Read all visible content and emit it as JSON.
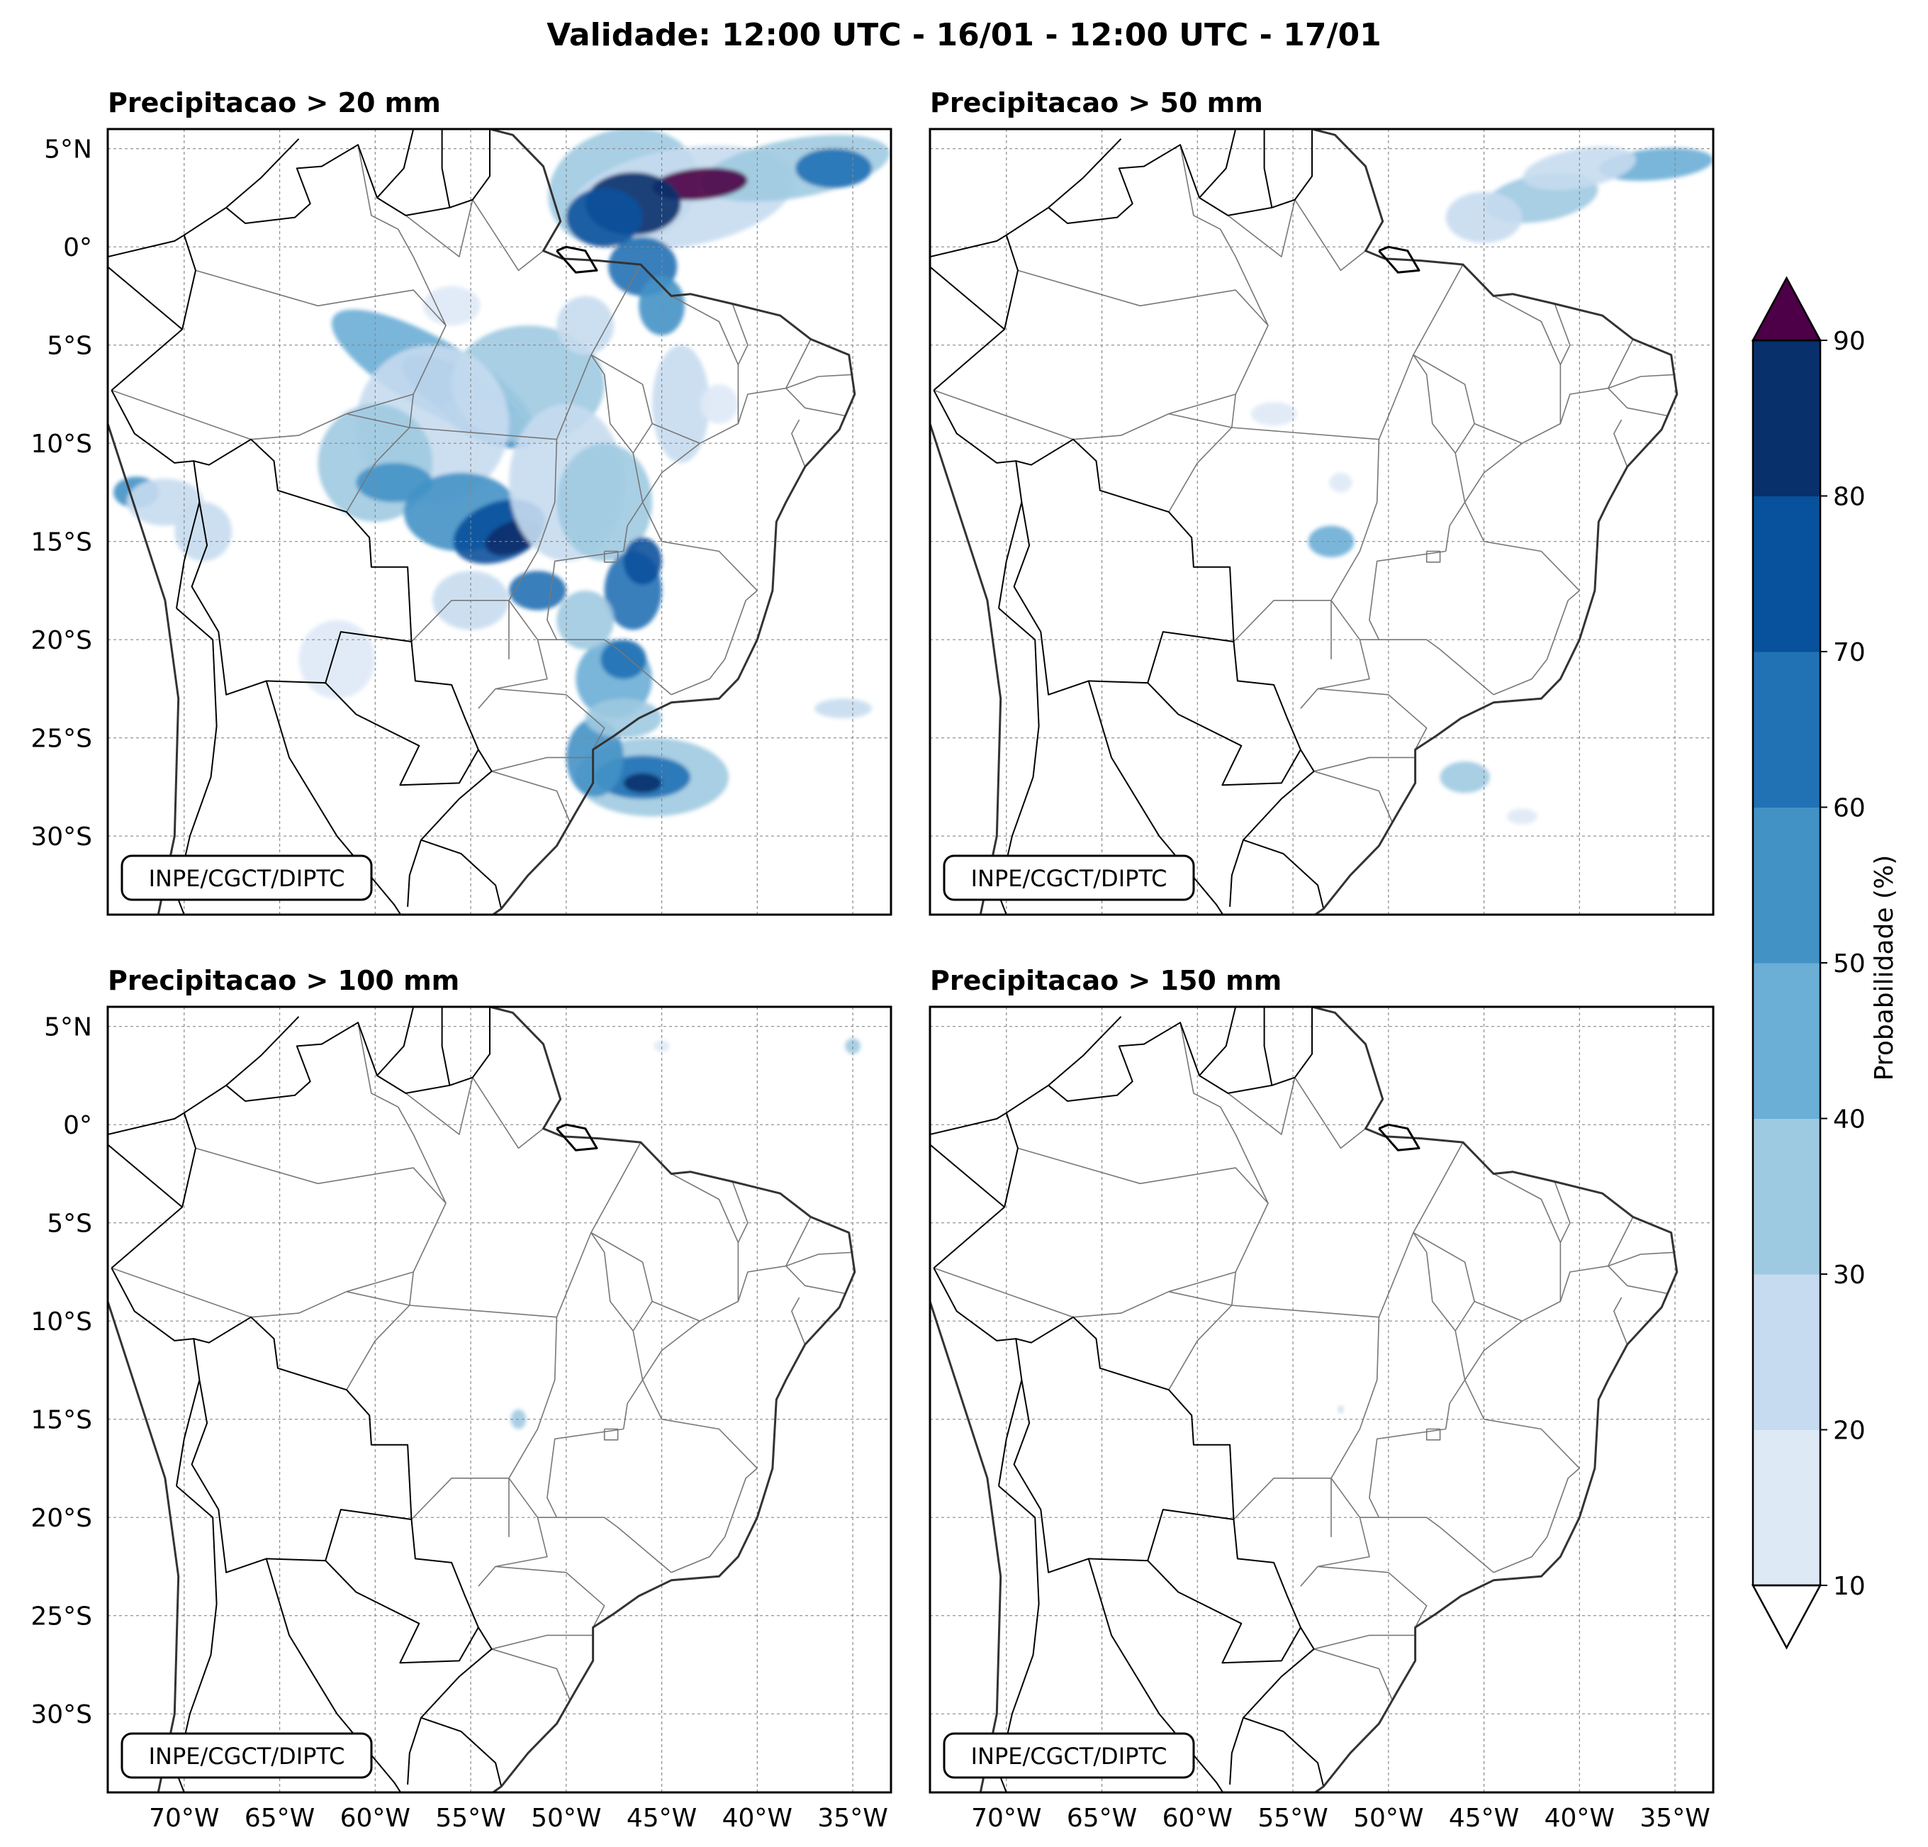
{
  "title": "Validade: 12:00 UTC - 16/01 - 12:00 UTC - 17/01",
  "panels": [
    {
      "title": "Precipitacao > 20 mm",
      "watermark": "INPE/CGCT/DIPTC",
      "intensity": 1.0
    },
    {
      "title": "Precipitacao > 50 mm",
      "watermark": "INPE/CGCT/DIPTC",
      "intensity": 0.45
    },
    {
      "title": "Precipitacao > 100 mm",
      "watermark": "INPE/CGCT/DIPTC",
      "intensity": 0.12
    },
    {
      "title": "Precipitacao > 150 mm",
      "watermark": "INPE/CGCT/DIPTC",
      "intensity": 0.03
    }
  ],
  "axes": {
    "lon_range": [
      -74,
      -33
    ],
    "lat_range": [
      -34,
      6
    ],
    "lon_ticks": [
      -70,
      -65,
      -60,
      -55,
      -50,
      -45,
      -40,
      -35
    ],
    "lon_labels": [
      "70°W",
      "65°W",
      "60°W",
      "55°W",
      "50°W",
      "45°W",
      "40°W",
      "35°W"
    ],
    "lat_ticks": [
      5,
      0,
      -5,
      -10,
      -15,
      -20,
      -25,
      -30
    ],
    "lat_labels": [
      "5°N",
      "0°",
      "5°S",
      "10°S",
      "15°S",
      "20°S",
      "25°S",
      "30°S"
    ]
  },
  "colorbar": {
    "label": "Probabilidade (%)",
    "ticks": [
      10,
      20,
      30,
      40,
      50,
      60,
      70,
      80,
      90
    ],
    "colors": [
      "#dee9f6",
      "#c6dbef",
      "#9ecae1",
      "#6baed6",
      "#4292c6",
      "#2171b5",
      "#08519c",
      "#08306b"
    ],
    "over_color": "#4d0047",
    "under_color": "#ffffff"
  }
}
